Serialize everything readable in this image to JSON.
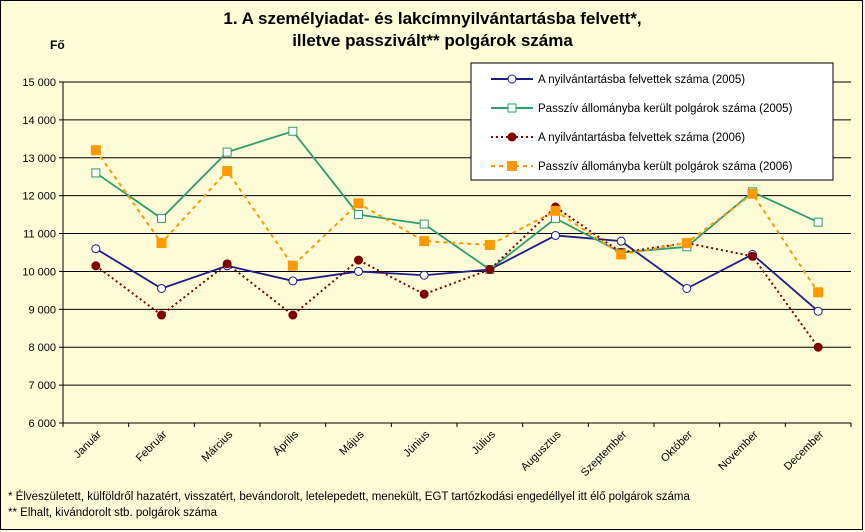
{
  "chart_data": {
    "type": "line",
    "title_line1": "1. A személyiadat- és lakcímnyilvántartásba felvett*,",
    "title_line2": "illetve passzivált** polgárok száma",
    "ylabel": "Fő",
    "ylim": [
      6000,
      15000
    ],
    "yticks": [
      6000,
      7000,
      8000,
      9000,
      10000,
      11000,
      12000,
      13000,
      14000,
      15000
    ],
    "ytick_labels": [
      "6 000",
      "7 000",
      "8 000",
      "9 000",
      "10 000",
      "11 000",
      "12 000",
      "13 000",
      "14 000",
      "15 000"
    ],
    "categories": [
      "Január",
      "Február",
      "Március",
      "Április",
      "Május",
      "Június",
      "Július",
      "Augusztus",
      "Szeptember",
      "Október",
      "November",
      "December"
    ],
    "grid": true,
    "legend_position": "top-right",
    "series": [
      {
        "name": "A nyilvántartásba felvettek száma (2005)",
        "values": [
          10600,
          9550,
          10150,
          9750,
          10000,
          9900,
          10050,
          10950,
          10800,
          9550,
          10450,
          8950
        ],
        "color": "#1c1c8c",
        "style": "solid",
        "marker": "circle-open"
      },
      {
        "name": "Passzív állományba került polgárok száma (2005)",
        "values": [
          12600,
          11400,
          13150,
          13700,
          11500,
          11250,
          10050,
          11400,
          10500,
          10650,
          12100,
          11300
        ],
        "color": "#2e9e6e",
        "style": "solid",
        "marker": "square-open"
      },
      {
        "name": "A nyilvántartásba felvettek száma (2006)",
        "values": [
          10150,
          8850,
          10200,
          8850,
          10300,
          9400,
          10050,
          11700,
          10500,
          10750,
          10400,
          8000
        ],
        "color": "#800000",
        "style": "dotted",
        "marker": "circle-filled"
      },
      {
        "name": "Passzív állományba került polgárok száma (2006)",
        "values": [
          13200,
          10750,
          12650,
          10150,
          11800,
          10800,
          10700,
          11600,
          10450,
          10750,
          12050,
          9450
        ],
        "color": "#ff9900",
        "style": "dashed",
        "marker": "square-filled"
      }
    ]
  },
  "footnotes": {
    "note1": "* Élveszületett, külföldről hazatért, visszatért, bevándorolt, letelepedett, menekült, EGT tartózkodási engedéllyel itt élő  polgárok száma",
    "note2": "** Elhalt, kivándorolt stb. polgárok száma"
  }
}
